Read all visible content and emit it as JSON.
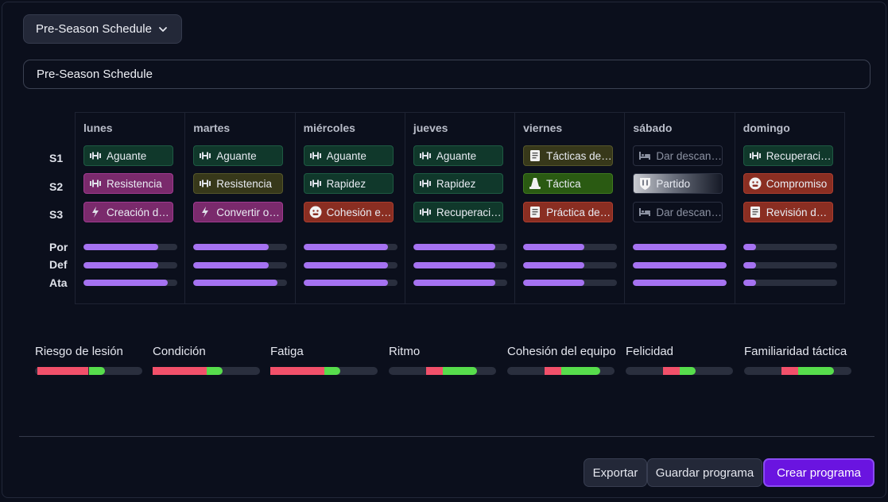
{
  "schedule_select": {
    "value": "Pre-Season Schedule"
  },
  "schedule_name": {
    "value": "Pre-Season Schedule"
  },
  "row_labels": {
    "s1": "S1",
    "s2": "S2",
    "s3": "S3",
    "por": "Por",
    "def": "Def",
    "ata": "Ata"
  },
  "days": [
    {
      "name": "lunes",
      "sessions": [
        {
          "label": "Aguante",
          "icon": "dumbbell-icon",
          "style": "green"
        },
        {
          "label": "Resistencia",
          "icon": "dumbbell-icon",
          "style": "pink"
        },
        {
          "label": "Creación de oportunidades",
          "icon": "lightning-icon",
          "style": "pink"
        }
      ],
      "levels": {
        "por": 0.8,
        "def": 0.8,
        "ata": 0.9
      }
    },
    {
      "name": "martes",
      "sessions": [
        {
          "label": "Aguante",
          "icon": "dumbbell-icon",
          "style": "green"
        },
        {
          "label": "Resistencia",
          "icon": "dumbbell-icon",
          "style": "olive"
        },
        {
          "label": "Convertir oportunidades",
          "icon": "lightning-icon",
          "style": "pink"
        }
      ],
      "levels": {
        "por": 0.8,
        "def": 0.8,
        "ata": 0.9
      }
    },
    {
      "name": "miércoles",
      "sessions": [
        {
          "label": "Aguante",
          "icon": "dumbbell-icon",
          "style": "green"
        },
        {
          "label": "Rapidez",
          "icon": "dumbbell-icon",
          "style": "green"
        },
        {
          "label": "Cohesión equipo",
          "icon": "smiley-icon",
          "style": "red"
        }
      ],
      "levels": {
        "por": 0.9,
        "def": 0.9,
        "ata": 0.9
      }
    },
    {
      "name": "jueves",
      "sessions": [
        {
          "label": "Aguante",
          "icon": "dumbbell-icon",
          "style": "green"
        },
        {
          "label": "Rapidez",
          "icon": "dumbbell-icon",
          "style": "green"
        },
        {
          "label": "Recuperación",
          "icon": "dumbbell-icon",
          "style": "green"
        }
      ],
      "levels": {
        "por": 0.87,
        "def": 0.87,
        "ata": 0.87
      }
    },
    {
      "name": "viernes",
      "sessions": [
        {
          "label": "Tácticas de partido",
          "icon": "document-icon",
          "style": "olive"
        },
        {
          "label": "Táctica",
          "icon": "cone-icon",
          "style": "lime"
        },
        {
          "label": "Práctica de tiro",
          "icon": "document-icon",
          "style": "red"
        }
      ],
      "levels": {
        "por": 0.65,
        "def": 0.65,
        "ata": 0.65
      }
    },
    {
      "name": "sábado",
      "sessions": [
        {
          "label": "Dar descanso",
          "icon": "bed-icon",
          "style": "gray"
        },
        {
          "label": "Partido",
          "icon": "shield-icon",
          "style": "grad"
        },
        {
          "label": "Dar descanso",
          "icon": "bed-icon",
          "style": "gray"
        }
      ],
      "levels": {
        "por": 1.0,
        "def": 1.0,
        "ata": 1.0
      }
    },
    {
      "name": "domingo",
      "sessions": [
        {
          "label": "Recuperación",
          "icon": "dumbbell-icon",
          "style": "green"
        },
        {
          "label": "Compromiso",
          "icon": "smiley-icon",
          "style": "red"
        },
        {
          "label": "Revisión de partido",
          "icon": "document-icon",
          "style": "red"
        }
      ],
      "levels": {
        "por": 0.14,
        "def": 0.14,
        "ata": 0.14
      }
    }
  ],
  "metrics": [
    {
      "label": "Riesgo de lesión",
      "negative": 0.48,
      "positive": 0.15
    },
    {
      "label": "Condición",
      "negative": 0.5,
      "positive": 0.15
    },
    {
      "label": "Fatiga",
      "negative": 0.5,
      "positive": 0.15
    },
    {
      "label": "Ritmo",
      "negative": 0.15,
      "positive": 0.32
    },
    {
      "label": "Cohesión del equipo",
      "negative": 0.15,
      "positive": 0.37
    },
    {
      "label": "Felicidad",
      "negative": 0.15,
      "positive": 0.15
    },
    {
      "label": "Familiaridad táctica",
      "negative": 0.15,
      "positive": 0.34
    }
  ],
  "actions": {
    "export": "Exportar",
    "save": "Guardar programa",
    "create": "Crear programa"
  },
  "colors": {
    "accent": "#6a14e0",
    "level_fill": "#a572f1",
    "negative": "#f2506a",
    "positive": "#57dd4c"
  }
}
